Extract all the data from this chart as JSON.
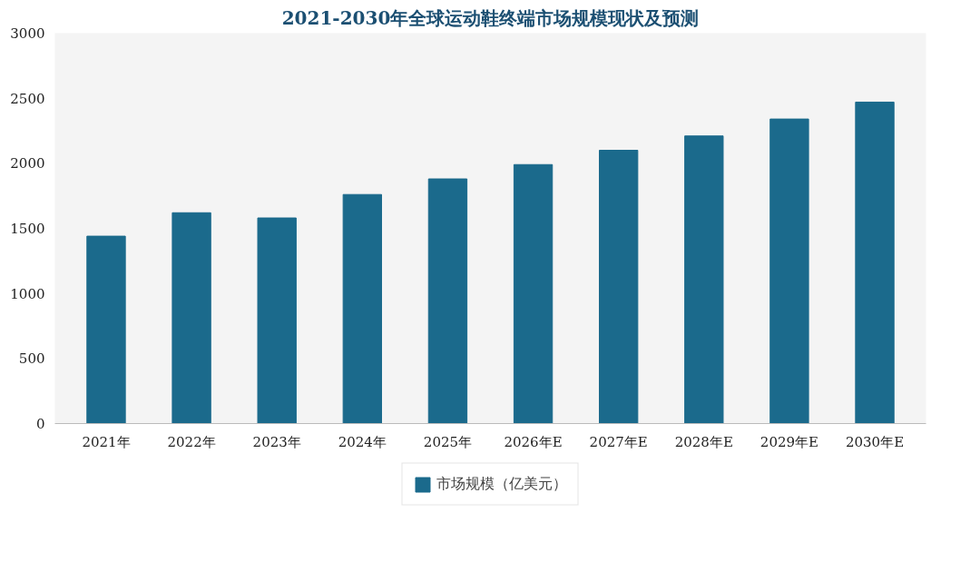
{
  "chart_data": {
    "type": "bar",
    "title": "2021-2030年全球运动鞋终端市场规模现状及预测",
    "categories": [
      "2021年",
      "2022年",
      "2023年",
      "2024年",
      "2025年",
      "2026年E",
      "2027年E",
      "2028年E",
      "2029年E",
      "2030年E"
    ],
    "series": [
      {
        "name": "市场规模（亿美元）",
        "color": "#1b6a8c",
        "values": [
          1440,
          1620,
          1580,
          1760,
          1880,
          1990,
          2100,
          2210,
          2340,
          2470
        ]
      }
    ],
    "ylim": [
      0,
      3000
    ],
    "yticks": [
      0,
      500,
      1000,
      1500,
      2000,
      2500,
      3000
    ],
    "grid": false,
    "legend": "bottom"
  }
}
